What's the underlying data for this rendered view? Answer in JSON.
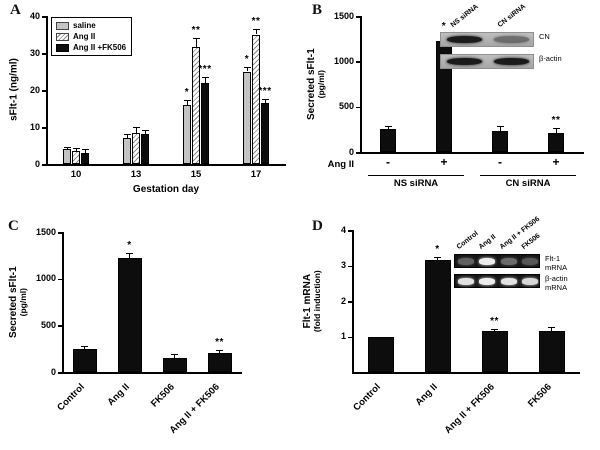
{
  "page": {
    "background": "#ffffff"
  },
  "chart_data": [
    {
      "panel": "A",
      "type": "bar",
      "title": "",
      "xlabel": "Gestation day",
      "ylabel": "sFlt-1 (ng/ml)",
      "ylim": [
        0,
        40
      ],
      "yticks": [
        0,
        10,
        20,
        30,
        40
      ],
      "categories": [
        "10",
        "13",
        "15",
        "17"
      ],
      "legend_position": "top-left",
      "series": [
        {
          "name": "saline",
          "style": "gray",
          "fill": "#c4c4c4",
          "values": [
            4.0,
            7.0,
            16.0,
            25.0
          ],
          "errors": [
            0.7,
            1.2,
            1.2,
            1.3
          ],
          "sig": [
            "",
            "",
            "*",
            "*"
          ]
        },
        {
          "name": "Ang II",
          "style": "hatch",
          "fill": "diagonal-hatch",
          "values": [
            3.4,
            8.5,
            31.5,
            35.0
          ],
          "errors": [
            0.8,
            1.4,
            2.6,
            1.4
          ],
          "sig": [
            "",
            "",
            "**",
            "**"
          ]
        },
        {
          "name": "Ang II +FK506",
          "style": "black",
          "fill": "#0d0d0d",
          "values": [
            3.1,
            8.0,
            22.0,
            16.5
          ],
          "errors": [
            1.0,
            1.1,
            1.6,
            1.1
          ],
          "sig": [
            "",
            "",
            "***",
            "***"
          ]
        }
      ]
    },
    {
      "panel": "B",
      "type": "bar",
      "title": "",
      "xlabel": "",
      "ylabel": "Secreted sFlt-1",
      "ylabel2": "(pg/ml)",
      "ylim": [
        0,
        1500
      ],
      "yticks": [
        0,
        500,
        1000,
        1500
      ],
      "categories": [
        "-",
        "+",
        "-",
        "+"
      ],
      "axis_row_label": "Ang II",
      "groups": [
        {
          "label": "NS siRNA",
          "from": 0,
          "to": 1
        },
        {
          "label": "CN siRNA",
          "from": 2,
          "to": 3
        }
      ],
      "series": [
        {
          "name": "Secreted sFlt-1",
          "style": "black",
          "fill": "#0d0d0d",
          "values": [
            250,
            1220,
            230,
            215
          ],
          "errors": [
            40,
            80,
            60,
            50
          ],
          "sig": [
            "",
            "*",
            "",
            "**"
          ]
        }
      ],
      "inset": {
        "kind": "western-blot",
        "lanes": [
          "NS siRNA",
          "CN siRNA"
        ],
        "rows": [
          {
            "label": "CN",
            "band_intensities": [
              1,
              0.45
            ]
          },
          {
            "label": "β-actin",
            "band_intensities": [
              1,
              1
            ]
          }
        ]
      }
    },
    {
      "panel": "C",
      "type": "bar",
      "title": "",
      "xlabel": "",
      "ylabel": "Secreted sFlt-1",
      "ylabel2": "(pg/ml)",
      "ylim": [
        0,
        1500
      ],
      "yticks": [
        0,
        500,
        1000,
        1500
      ],
      "rotate_labels": true,
      "categories": [
        "Control",
        "Ang II",
        "FK506",
        "Ang II + FK506"
      ],
      "series": [
        {
          "name": "Secreted sFlt-1",
          "style": "black",
          "fill": "#0d0d0d",
          "values": [
            245,
            1220,
            150,
            200
          ],
          "errors": [
            35,
            60,
            45,
            40
          ],
          "sig": [
            "",
            "*",
            "",
            "**"
          ]
        }
      ]
    },
    {
      "panel": "D",
      "type": "bar",
      "title": "",
      "xlabel": "",
      "ylabel": "Flt-1 mRNA",
      "ylabel2": "(fold induction)",
      "ylim": [
        0,
        4
      ],
      "yticks": [
        1,
        2,
        3,
        4
      ],
      "rotate_labels": true,
      "categories": [
        "Control",
        "Ang II",
        "Ang II + FK506",
        "FK506"
      ],
      "series": [
        {
          "name": "Flt-1 mRNA",
          "style": "black",
          "fill": "#0d0d0d",
          "values": [
            1.0,
            3.15,
            1.15,
            1.15
          ],
          "errors": [
            0,
            0.1,
            0.05,
            0.13
          ],
          "sig": [
            "",
            "*",
            "**",
            ""
          ]
        }
      ],
      "inset": {
        "kind": "gel",
        "lanes": [
          "Control",
          "Ang II",
          "Ang II + FK506",
          "FK506"
        ],
        "rows": [
          {
            "label": "Flt-1\nmRNA",
            "band_intensities": [
              0.35,
              1,
              0.4,
              0.3
            ]
          },
          {
            "label": "β-actin\nmRNA",
            "band_intensities": [
              0.95,
              1,
              0.95,
              0.9
            ]
          }
        ]
      }
    }
  ]
}
